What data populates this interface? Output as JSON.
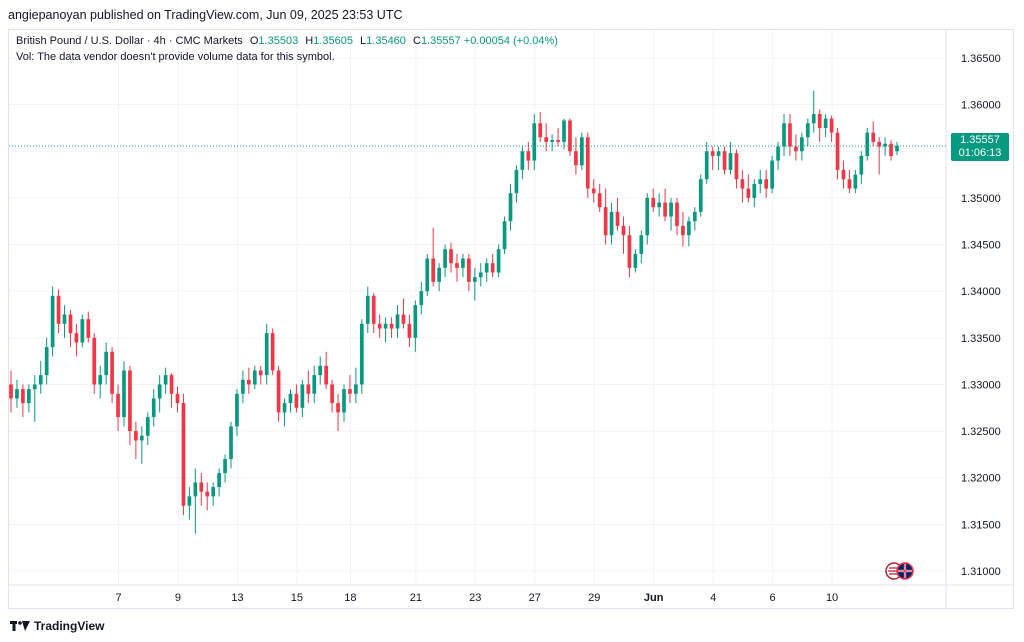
{
  "header": {
    "published": "angiepanoyan published on TradingView.com, Jun 09, 2025 23:53 UTC"
  },
  "legend": {
    "symbol": "British Pound / U.S. Dollar · 4h · CMC Markets",
    "o_label": "O",
    "o": "1.35503",
    "h_label": "H",
    "h": "1.35605",
    "l_label": "L",
    "l": "1.35460",
    "c_label": "C",
    "c": "1.35557",
    "change": "+0.00054 (+0.04%)",
    "vol_note": "Vol: The data vendor doesn't provide volume data for this symbol."
  },
  "price_badge": {
    "price": "1.35557",
    "countdown": "01:06:13"
  },
  "footer": {
    "brand": "TradingView"
  },
  "colors": {
    "up": "#089981",
    "down": "#f23645",
    "grid": "#f0f3fa",
    "text": "#131722"
  },
  "chart_data": {
    "type": "candlestick",
    "y_ticks": [
      "1.36500",
      "1.36000",
      "1.35500",
      "1.35000",
      "1.34500",
      "1.34000",
      "1.33500",
      "1.33000",
      "1.32500",
      "1.32000",
      "1.31500",
      "1.31000"
    ],
    "y_tick_values": [
      1.365,
      1.36,
      1.355,
      1.35,
      1.345,
      1.34,
      1.335,
      1.33,
      1.325,
      1.32,
      1.315,
      1.31
    ],
    "x_ticks": [
      "7",
      "9",
      "13",
      "15",
      "18",
      "21",
      "23",
      "27",
      "29",
      "Jun",
      "4",
      "6",
      "10"
    ],
    "x_tick_index": [
      9,
      19,
      29,
      39,
      48,
      59,
      69,
      79,
      89,
      99,
      109,
      119,
      129
    ],
    "ylim": [
      1.3085,
      1.368
    ],
    "current_price": 1.35557,
    "ohlc": [
      [
        1.33,
        1.3315,
        1.327,
        1.3285
      ],
      [
        1.3285,
        1.3305,
        1.3275,
        1.3295
      ],
      [
        1.3295,
        1.33,
        1.3265,
        1.328
      ],
      [
        1.328,
        1.33,
        1.327,
        1.3295
      ],
      [
        1.3295,
        1.331,
        1.326,
        1.33
      ],
      [
        1.33,
        1.3325,
        1.329,
        1.331
      ],
      [
        1.331,
        1.335,
        1.33,
        1.334
      ],
      [
        1.334,
        1.3405,
        1.333,
        1.3395
      ],
      [
        1.3395,
        1.3402,
        1.3355,
        1.3365
      ],
      [
        1.3365,
        1.3385,
        1.335,
        1.3375
      ],
      [
        1.3375,
        1.338,
        1.334,
        1.3355
      ],
      [
        1.3355,
        1.3365,
        1.333,
        1.3345
      ],
      [
        1.3345,
        1.3375,
        1.334,
        1.337
      ],
      [
        1.337,
        1.3378,
        1.3345,
        1.335
      ],
      [
        1.335,
        1.3355,
        1.329,
        1.33
      ],
      [
        1.33,
        1.332,
        1.3285,
        1.331
      ],
      [
        1.331,
        1.3345,
        1.33,
        1.3335
      ],
      [
        1.3335,
        1.334,
        1.328,
        1.329
      ],
      [
        1.329,
        1.33,
        1.325,
        1.3265
      ],
      [
        1.3265,
        1.3325,
        1.3255,
        1.3315
      ],
      [
        1.3315,
        1.332,
        1.3235,
        1.325
      ],
      [
        1.325,
        1.326,
        1.322,
        1.324
      ],
      [
        1.324,
        1.3255,
        1.3215,
        1.3245
      ],
      [
        1.3245,
        1.327,
        1.3235,
        1.3265
      ],
      [
        1.3265,
        1.3295,
        1.3255,
        1.3285
      ],
      [
        1.3285,
        1.331,
        1.327,
        1.33
      ],
      [
        1.33,
        1.3318,
        1.329,
        1.331
      ],
      [
        1.331,
        1.3312,
        1.3275,
        1.329
      ],
      [
        1.329,
        1.3298,
        1.327,
        1.328
      ],
      [
        1.328,
        1.329,
        1.316,
        1.317
      ],
      [
        1.317,
        1.319,
        1.3155,
        1.318
      ],
      [
        1.318,
        1.321,
        1.314,
        1.3195
      ],
      [
        1.3195,
        1.3205,
        1.317,
        1.3185
      ],
      [
        1.3185,
        1.3195,
        1.3165,
        1.318
      ],
      [
        1.318,
        1.3195,
        1.317,
        1.319
      ],
      [
        1.319,
        1.321,
        1.318,
        1.3205
      ],
      [
        1.3205,
        1.3225,
        1.3195,
        1.322
      ],
      [
        1.322,
        1.326,
        1.321,
        1.3255
      ],
      [
        1.3255,
        1.3295,
        1.3245,
        1.329
      ],
      [
        1.329,
        1.3315,
        1.328,
        1.3305
      ],
      [
        1.3305,
        1.3318,
        1.329,
        1.33
      ],
      [
        1.33,
        1.332,
        1.3295,
        1.3315
      ],
      [
        1.3315,
        1.332,
        1.33,
        1.331
      ],
      [
        1.331,
        1.3365,
        1.33,
        1.3355
      ],
      [
        1.3355,
        1.336,
        1.331,
        1.3315
      ],
      [
        1.3315,
        1.332,
        1.326,
        1.327
      ],
      [
        1.327,
        1.3285,
        1.3255,
        1.328
      ],
      [
        1.328,
        1.3295,
        1.327,
        1.329
      ],
      [
        1.329,
        1.33,
        1.327,
        1.3275
      ],
      [
        1.3275,
        1.3305,
        1.3265,
        1.33
      ],
      [
        1.33,
        1.3315,
        1.328,
        1.329
      ],
      [
        1.329,
        1.332,
        1.328,
        1.331
      ],
      [
        1.331,
        1.333,
        1.33,
        1.332
      ],
      [
        1.332,
        1.3335,
        1.3295,
        1.33
      ],
      [
        1.33,
        1.3305,
        1.327,
        1.328
      ],
      [
        1.328,
        1.329,
        1.325,
        1.327
      ],
      [
        1.327,
        1.33,
        1.326,
        1.3295
      ],
      [
        1.3295,
        1.331,
        1.328,
        1.329
      ],
      [
        1.329,
        1.3318,
        1.328,
        1.33
      ],
      [
        1.33,
        1.337,
        1.329,
        1.3365
      ],
      [
        1.3365,
        1.3405,
        1.3355,
        1.3395
      ],
      [
        1.3395,
        1.3398,
        1.3355,
        1.3365
      ],
      [
        1.3365,
        1.3375,
        1.335,
        1.336
      ],
      [
        1.336,
        1.3372,
        1.3345,
        1.3365
      ],
      [
        1.3365,
        1.3372,
        1.335,
        1.336
      ],
      [
        1.336,
        1.3385,
        1.335,
        1.3375
      ],
      [
        1.3375,
        1.3392,
        1.336,
        1.3365
      ],
      [
        1.3365,
        1.3375,
        1.334,
        1.335
      ],
      [
        1.335,
        1.339,
        1.3335,
        1.3385
      ],
      [
        1.3385,
        1.341,
        1.3375,
        1.34
      ],
      [
        1.34,
        1.344,
        1.3395,
        1.3435
      ],
      [
        1.3435,
        1.3468,
        1.3405,
        1.341
      ],
      [
        1.341,
        1.343,
        1.34,
        1.3425
      ],
      [
        1.3425,
        1.345,
        1.3415,
        1.3445
      ],
      [
        1.3445,
        1.3452,
        1.342,
        1.343
      ],
      [
        1.343,
        1.344,
        1.341,
        1.3425
      ],
      [
        1.3425,
        1.344,
        1.3415,
        1.3435
      ],
      [
        1.3435,
        1.344,
        1.34,
        1.341
      ],
      [
        1.341,
        1.3425,
        1.339,
        1.3415
      ],
      [
        1.3415,
        1.343,
        1.3405,
        1.342
      ],
      [
        1.342,
        1.3435,
        1.341,
        1.343
      ],
      [
        1.343,
        1.344,
        1.3415,
        1.342
      ],
      [
        1.342,
        1.345,
        1.3415,
        1.3445
      ],
      [
        1.3445,
        1.348,
        1.344,
        1.3475
      ],
      [
        1.3475,
        1.3515,
        1.3465,
        1.3505
      ],
      [
        1.3505,
        1.3535,
        1.3495,
        1.353
      ],
      [
        1.353,
        1.3555,
        1.352,
        1.355
      ],
      [
        1.355,
        1.356,
        1.353,
        1.354
      ],
      [
        1.354,
        1.359,
        1.353,
        1.358
      ],
      [
        1.358,
        1.3592,
        1.356,
        1.3565
      ],
      [
        1.3565,
        1.358,
        1.355,
        1.356
      ],
      [
        1.356,
        1.3568,
        1.355,
        1.3562
      ],
      [
        1.3562,
        1.3575,
        1.3555,
        1.356
      ],
      [
        1.356,
        1.3585,
        1.3552,
        1.3583
      ],
      [
        1.3583,
        1.3585,
        1.3545,
        1.355
      ],
      [
        1.355,
        1.3565,
        1.3525,
        1.3535
      ],
      [
        1.3535,
        1.357,
        1.353,
        1.3565
      ],
      [
        1.3565,
        1.357,
        1.35,
        1.351
      ],
      [
        1.351,
        1.352,
        1.3495,
        1.3505
      ],
      [
        1.3505,
        1.3515,
        1.3485,
        1.349
      ],
      [
        1.349,
        1.351,
        1.345,
        1.346
      ],
      [
        1.346,
        1.3495,
        1.345,
        1.3485
      ],
      [
        1.3485,
        1.35,
        1.3465,
        1.347
      ],
      [
        1.347,
        1.348,
        1.344,
        1.346
      ],
      [
        1.346,
        1.347,
        1.3415,
        1.3425
      ],
      [
        1.3425,
        1.3445,
        1.342,
        1.344
      ],
      [
        1.344,
        1.3465,
        1.343,
        1.346
      ],
      [
        1.346,
        1.3505,
        1.345,
        1.35
      ],
      [
        1.35,
        1.351,
        1.3485,
        1.349
      ],
      [
        1.349,
        1.3505,
        1.348,
        1.3495
      ],
      [
        1.3495,
        1.351,
        1.3475,
        1.348
      ],
      [
        1.348,
        1.35,
        1.3465,
        1.3495
      ],
      [
        1.3495,
        1.35,
        1.346,
        1.347
      ],
      [
        1.347,
        1.3485,
        1.3448,
        1.346
      ],
      [
        1.346,
        1.348,
        1.3448,
        1.3475
      ],
      [
        1.3475,
        1.349,
        1.3465,
        1.3485
      ],
      [
        1.3485,
        1.3525,
        1.348,
        1.352
      ],
      [
        1.352,
        1.356,
        1.3515,
        1.355
      ],
      [
        1.355,
        1.3555,
        1.353,
        1.3545
      ],
      [
        1.3545,
        1.3555,
        1.353,
        1.355
      ],
      [
        1.355,
        1.3555,
        1.3525,
        1.353
      ],
      [
        1.353,
        1.356,
        1.3525,
        1.3548
      ],
      [
        1.3548,
        1.3552,
        1.351,
        1.352
      ],
      [
        1.352,
        1.353,
        1.3495,
        1.351
      ],
      [
        1.351,
        1.3525,
        1.3495,
        1.35
      ],
      [
        1.35,
        1.352,
        1.349,
        1.3515
      ],
      [
        1.3515,
        1.353,
        1.3505,
        1.352
      ],
      [
        1.352,
        1.353,
        1.35,
        1.351
      ],
      [
        1.351,
        1.3545,
        1.3505,
        1.354
      ],
      [
        1.354,
        1.356,
        1.353,
        1.3555
      ],
      [
        1.3555,
        1.359,
        1.3545,
        1.358
      ],
      [
        1.358,
        1.359,
        1.3545,
        1.3555
      ],
      [
        1.3555,
        1.3568,
        1.354,
        1.355
      ],
      [
        1.355,
        1.357,
        1.354,
        1.3565
      ],
      [
        1.3565,
        1.3585,
        1.3555,
        1.358
      ],
      [
        1.358,
        1.3615,
        1.357,
        1.359
      ],
      [
        1.359,
        1.3595,
        1.356,
        1.3575
      ],
      [
        1.3575,
        1.359,
        1.3565,
        1.3585
      ],
      [
        1.3585,
        1.3588,
        1.356,
        1.357
      ],
      [
        1.357,
        1.3575,
        1.352,
        1.353
      ],
      [
        1.353,
        1.354,
        1.351,
        1.352
      ],
      [
        1.352,
        1.353,
        1.3505,
        1.351
      ],
      [
        1.351,
        1.353,
        1.3505,
        1.3525
      ],
      [
        1.3525,
        1.355,
        1.3515,
        1.3545
      ],
      [
        1.3545,
        1.3575,
        1.354,
        1.357
      ],
      [
        1.357,
        1.3582,
        1.3555,
        1.356
      ],
      [
        1.356,
        1.3565,
        1.3525,
        1.3555
      ],
      [
        1.3555,
        1.3565,
        1.3545,
        1.3558
      ],
      [
        1.3558,
        1.3562,
        1.354,
        1.3545
      ],
      [
        1.355,
        1.356,
        1.3546,
        1.3556
      ]
    ]
  }
}
